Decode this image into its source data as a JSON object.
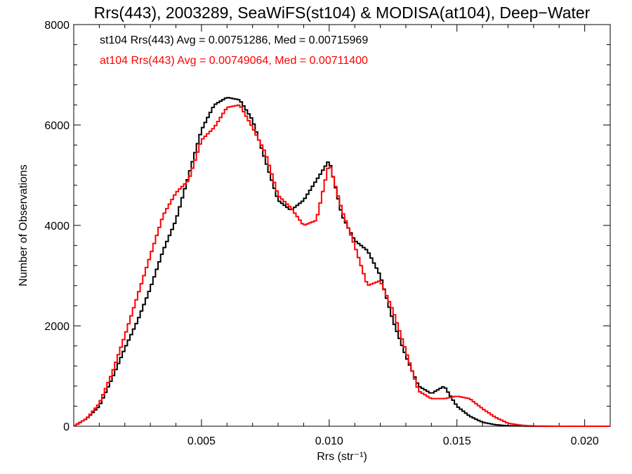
{
  "chart_data": {
    "type": "line",
    "title": "Rrs(443), 2003289, SeaWiFS(st104) & MODISA(at104), Deep−Water",
    "xlabel": "Rrs (str⁻¹)",
    "ylabel": "Number of Observations",
    "xlim": [
      0.0,
      0.021
    ],
    "ylim": [
      0,
      8000
    ],
    "xticks": [
      0.005,
      0.01,
      0.015,
      0.02
    ],
    "xtick_labels": [
      "0.005",
      "0.010",
      "0.015",
      "0.020"
    ],
    "yticks": [
      0,
      2000,
      4000,
      6000,
      8000
    ],
    "ytick_labels": [
      "0",
      "2000",
      "4000",
      "6000",
      "8000"
    ],
    "grid": false,
    "annotations": [
      {
        "text": "st104 Rrs(443) Avg = 0.00751286, Med = 0.00715969",
        "color": "#000000"
      },
      {
        "text": "at104 Rrs(443) Avg = 0.00749064, Med = 0.00711400",
        "color": "#ff0000"
      }
    ],
    "series": [
      {
        "color": "#000000",
        "x": [
          0.0,
          0.0005,
          0.001,
          0.0015,
          0.002,
          0.0025,
          0.003,
          0.0035,
          0.004,
          0.0045,
          0.005,
          0.0055,
          0.006,
          0.0065,
          0.007,
          0.0075,
          0.008,
          0.0085,
          0.009,
          0.0095,
          0.01,
          0.0105,
          0.011,
          0.0115,
          0.012,
          0.0125,
          0.013,
          0.0135,
          0.014,
          0.0145,
          0.015,
          0.0155,
          0.016,
          0.0165,
          0.017,
          0.0175,
          0.018,
          0.019,
          0.021
        ],
        "y": [
          0,
          150,
          400,
          950,
          1550,
          2100,
          2750,
          3500,
          4100,
          5000,
          5900,
          6400,
          6550,
          6500,
          6100,
          5300,
          4500,
          4300,
          4500,
          4900,
          5300,
          4200,
          3700,
          3500,
          3000,
          2100,
          1400,
          800,
          650,
          800,
          400,
          200,
          80,
          30,
          10,
          5,
          0,
          0,
          0
        ]
      },
      {
        "color": "#ff0000",
        "x": [
          0.0,
          0.0005,
          0.001,
          0.0015,
          0.002,
          0.0025,
          0.003,
          0.0035,
          0.004,
          0.0045,
          0.005,
          0.0055,
          0.006,
          0.0065,
          0.007,
          0.0075,
          0.008,
          0.0085,
          0.009,
          0.0095,
          0.01,
          0.0105,
          0.011,
          0.0115,
          0.012,
          0.0125,
          0.013,
          0.0135,
          0.014,
          0.0145,
          0.015,
          0.0155,
          0.016,
          0.0165,
          0.017,
          0.0175,
          0.018,
          0.019,
          0.021
        ],
        "y": [
          0,
          150,
          450,
          1050,
          1800,
          2600,
          3400,
          4200,
          4650,
          4900,
          5700,
          5950,
          6350,
          6400,
          5950,
          5450,
          4600,
          4350,
          4000,
          4100,
          5250,
          4300,
          3600,
          2800,
          2900,
          2300,
          1500,
          700,
          550,
          550,
          600,
          550,
          350,
          180,
          60,
          20,
          5,
          0,
          0
        ]
      }
    ]
  }
}
